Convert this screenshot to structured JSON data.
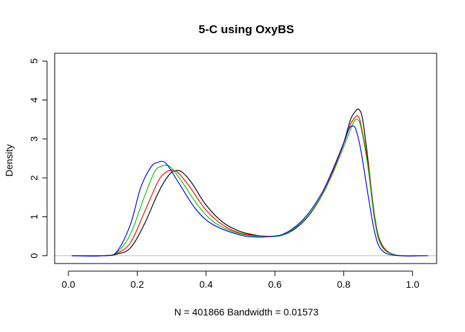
{
  "chart_data": {
    "type": "line",
    "title": "5-C using OxyBS",
    "xlabel": "N = 401866   Bandwidth = 0.01573",
    "ylabel": "Density",
    "xlim": [
      -0.04,
      1.07
    ],
    "ylim": [
      -0.2,
      5.2
    ],
    "xticks": [
      {
        "value": 0.0,
        "label": "0.0"
      },
      {
        "value": 0.2,
        "label": "0.2"
      },
      {
        "value": 0.4,
        "label": "0.4"
      },
      {
        "value": 0.6,
        "label": "0.6"
      },
      {
        "value": 0.8,
        "label": "0.8"
      },
      {
        "value": 1.0,
        "label": "1.0"
      }
    ],
    "yticks": [
      {
        "value": 0,
        "label": "0"
      },
      {
        "value": 1,
        "label": "1"
      },
      {
        "value": 2,
        "label": "2"
      },
      {
        "value": 3,
        "label": "3"
      },
      {
        "value": 4,
        "label": "4"
      },
      {
        "value": 5,
        "label": "5"
      }
    ],
    "grid": false,
    "zero_line_color": "#bebebe",
    "series": [
      {
        "color": "#000000",
        "x": [
          0.01,
          0.1,
          0.14,
          0.18,
          0.22,
          0.26,
          0.29,
          0.31,
          0.33,
          0.36,
          0.4,
          0.45,
          0.5,
          0.55,
          0.58,
          0.62,
          0.66,
          0.7,
          0.74,
          0.77,
          0.8,
          0.82,
          0.835,
          0.845,
          0.855,
          0.87,
          0.89,
          0.91,
          0.95,
          1.03
        ],
        "y": [
          0,
          0.0,
          0.04,
          0.2,
          0.8,
          1.6,
          2.05,
          2.18,
          2.15,
          1.85,
          1.3,
          0.85,
          0.62,
          0.52,
          0.5,
          0.52,
          0.7,
          1.05,
          1.6,
          2.2,
          2.9,
          3.5,
          3.72,
          3.75,
          3.5,
          2.5,
          1.0,
          0.3,
          0.02,
          0
        ]
      },
      {
        "color": "#ff0000",
        "x": [
          0.01,
          0.1,
          0.14,
          0.18,
          0.22,
          0.26,
          0.28,
          0.3,
          0.32,
          0.35,
          0.4,
          0.45,
          0.5,
          0.55,
          0.58,
          0.62,
          0.66,
          0.7,
          0.74,
          0.77,
          0.8,
          0.82,
          0.835,
          0.842,
          0.85,
          0.87,
          0.89,
          0.91,
          0.95,
          1.03
        ],
        "y": [
          0,
          0.0,
          0.06,
          0.33,
          1.1,
          1.9,
          2.12,
          2.2,
          2.12,
          1.8,
          1.17,
          0.78,
          0.58,
          0.51,
          0.5,
          0.53,
          0.72,
          1.07,
          1.62,
          2.2,
          2.88,
          3.38,
          3.57,
          3.58,
          3.37,
          2.4,
          0.95,
          0.28,
          0.02,
          0
        ]
      },
      {
        "color": "#00cd00",
        "x": [
          0.01,
          0.1,
          0.14,
          0.18,
          0.22,
          0.25,
          0.27,
          0.285,
          0.3,
          0.33,
          0.38,
          0.43,
          0.5,
          0.55,
          0.58,
          0.62,
          0.66,
          0.7,
          0.74,
          0.77,
          0.8,
          0.82,
          0.83,
          0.84,
          0.85,
          0.87,
          0.89,
          0.91,
          0.95,
          1.03
        ],
        "y": [
          0,
          0.0,
          0.08,
          0.55,
          1.5,
          2.15,
          2.3,
          2.32,
          2.25,
          1.9,
          1.25,
          0.82,
          0.56,
          0.5,
          0.49,
          0.52,
          0.72,
          1.07,
          1.6,
          2.15,
          2.8,
          3.25,
          3.45,
          3.5,
          3.3,
          2.3,
          0.9,
          0.25,
          0.02,
          0
        ]
      },
      {
        "color": "#0000ff",
        "x": [
          0.01,
          0.1,
          0.14,
          0.18,
          0.21,
          0.24,
          0.26,
          0.275,
          0.29,
          0.32,
          0.37,
          0.42,
          0.5,
          0.55,
          0.58,
          0.62,
          0.66,
          0.7,
          0.74,
          0.77,
          0.8,
          0.815,
          0.825,
          0.835,
          0.85,
          0.87,
          0.89,
          0.91,
          0.95,
          1.045
        ],
        "y": [
          0,
          0.0,
          0.1,
          0.8,
          1.75,
          2.28,
          2.4,
          2.42,
          2.3,
          1.88,
          1.2,
          0.8,
          0.53,
          0.48,
          0.49,
          0.54,
          0.75,
          1.12,
          1.67,
          2.25,
          2.9,
          3.25,
          3.33,
          3.25,
          2.7,
          1.6,
          0.6,
          0.15,
          0.01,
          0
        ]
      }
    ]
  }
}
